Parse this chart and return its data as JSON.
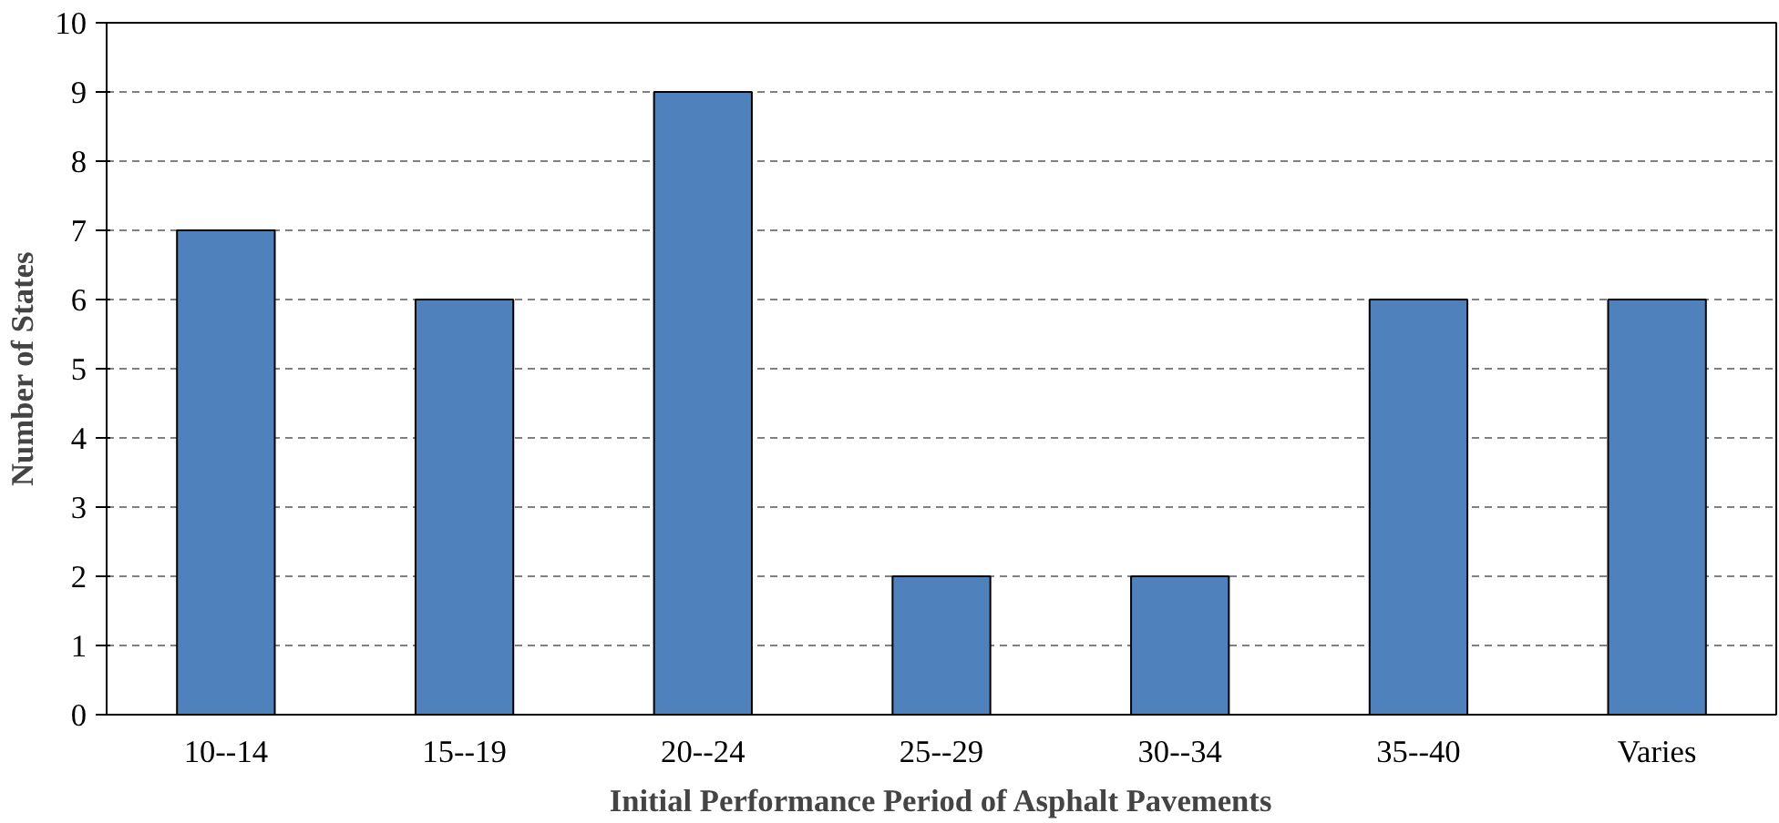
{
  "chart_data": {
    "type": "bar",
    "xlabel": "Initial Performance Period of Asphalt Pavements",
    "ylabel": "Number of States",
    "categories": [
      "10--14",
      "15--19",
      "20--24",
      "25--29",
      "30--34",
      "35--40",
      "Varies"
    ],
    "values": [
      7,
      6,
      9,
      2,
      2,
      6,
      6
    ],
    "color": "#4f81bd",
    "ylim": [
      0,
      10
    ],
    "yticks": [
      0,
      1,
      2,
      3,
      4,
      5,
      6,
      7,
      8,
      9,
      10
    ],
    "grid": "y"
  }
}
